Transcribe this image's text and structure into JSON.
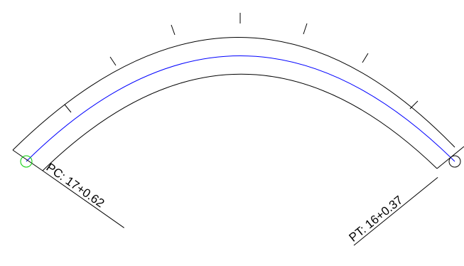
{
  "pc_label": "PC: 17+0.62",
  "pt_label": "PT: 16+0.37",
  "colors": {
    "background": "#ffffff",
    "edge_lines": "#000000",
    "centerline": "#0000ff",
    "pc_marker": "#00cc00",
    "pt_marker": "#000000"
  },
  "markers": [
    {
      "name": "pc-marker",
      "color_key": "pc_marker"
    },
    {
      "name": "pt-marker",
      "color_key": "pt_marker"
    }
  ]
}
